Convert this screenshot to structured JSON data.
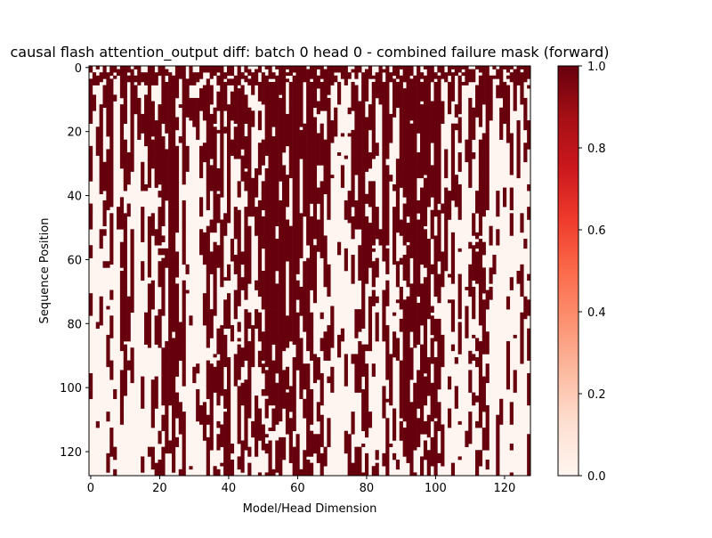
{
  "chart_data": {
    "type": "heatmap",
    "title": "causal flash attention_output diff: batch 0 head 0 - combined failure mask (forward)",
    "xlabel": "Model/Head Dimension",
    "ylabel": "Sequence Position",
    "x_range": [
      0,
      128
    ],
    "y_range": [
      0,
      128
    ],
    "y_inverted": true,
    "xticks": [
      0,
      20,
      40,
      60,
      80,
      100,
      120
    ],
    "yticks": [
      0,
      20,
      40,
      60,
      80,
      100,
      120
    ],
    "colormap": "Reds",
    "color_min": "#fff5f0",
    "color_max": "#67000d",
    "colorbar": {
      "range": [
        0.0,
        1.0
      ],
      "ticks": [
        "0.0",
        "0.2",
        "0.4",
        "0.6",
        "0.8",
        "1.0"
      ]
    },
    "description": "Binary mask: 1 = failure (dark red), 0 = pass (light). Failures are dense in early sequence positions and persist as vertical streaks in specific dimensions.",
    "column_failure_span": [
      12,
      0,
      10,
      9,
      9,
      14,
      15,
      4,
      3,
      29,
      26,
      8,
      10,
      0,
      0,
      7,
      4,
      9,
      13,
      24,
      24,
      32,
      26,
      32,
      32,
      25,
      9,
      32,
      12,
      2,
      2,
      4,
      4,
      7,
      30,
      22,
      21,
      20,
      26,
      20,
      22,
      7,
      9,
      26,
      21,
      24,
      30,
      15,
      10,
      20,
      19,
      32,
      32,
      32,
      25,
      30,
      30,
      24,
      32,
      32,
      32,
      19,
      32,
      32,
      31,
      20,
      9,
      18,
      16,
      16,
      10,
      1,
      9,
      12,
      11,
      15,
      18,
      21,
      27,
      28,
      25,
      23,
      20,
      10,
      4,
      32,
      32,
      14,
      13,
      5,
      27,
      27,
      32,
      32,
      32,
      26,
      32,
      32,
      32,
      19,
      32,
      32,
      13,
      12,
      11,
      18,
      8,
      12,
      7,
      10,
      12,
      19,
      15,
      28,
      22,
      18,
      10,
      4,
      5,
      4,
      6,
      6,
      9,
      9,
      6,
      10,
      9,
      14
    ]
  }
}
